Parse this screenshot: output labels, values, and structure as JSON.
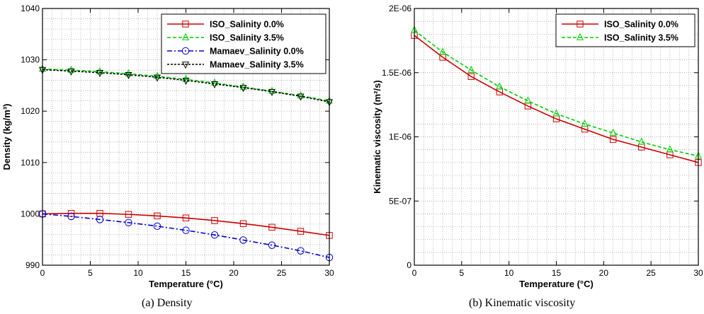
{
  "chart_data": [
    {
      "type": "line",
      "caption": "(a)  Density",
      "xlabel": "Temperature (°C)",
      "ylabel": "Density (kg/m³)",
      "xlim": [
        0,
        30
      ],
      "ylim": [
        990,
        1040
      ],
      "xticks": [
        0,
        5,
        10,
        15,
        20,
        25,
        30
      ],
      "yticks": [
        990,
        1000,
        1010,
        1020,
        1030,
        1040
      ],
      "ytick_labels": [
        "990",
        "1000",
        "1010",
        "1020",
        "1030",
        "1040"
      ],
      "grid": "dotted",
      "legend_position": "top-right",
      "series": [
        {
          "name": "ISO_Salinity 0.0%",
          "color": "#cc0000",
          "dash": "solid",
          "marker": "square",
          "x": [
            0,
            3,
            6,
            9,
            12,
            15,
            18,
            21,
            24,
            27,
            30
          ],
          "y": [
            1000.0,
            1000.1,
            1000.1,
            999.9,
            999.6,
            999.2,
            998.7,
            998.1,
            997.4,
            996.6,
            995.8
          ]
        },
        {
          "name": "ISO_Salinity 3.5%",
          "color": "#00cc00",
          "dash": "dashed",
          "marker": "triangle-up",
          "x": [
            0,
            3,
            6,
            9,
            12,
            15,
            18,
            21,
            24,
            27,
            30
          ],
          "y": [
            1028.2,
            1028.0,
            1027.7,
            1027.3,
            1026.8,
            1026.2,
            1025.5,
            1024.7,
            1023.9,
            1023.0,
            1022.0
          ]
        },
        {
          "name": "Mamaev_Salinity 0.0%",
          "color": "#0000cc",
          "dash": "dashdot",
          "marker": "circle",
          "x": [
            0,
            3,
            6,
            9,
            12,
            15,
            18,
            21,
            24,
            27,
            30
          ],
          "y": [
            1000.0,
            999.5,
            998.9,
            998.3,
            997.6,
            996.8,
            995.9,
            994.9,
            993.9,
            992.8,
            991.5
          ]
        },
        {
          "name": "Mamaev_Salinity 3.5%",
          "color": "#000000",
          "dash": "dotted",
          "marker": "triangle-down",
          "x": [
            0,
            3,
            6,
            9,
            12,
            15,
            18,
            21,
            24,
            27,
            30
          ],
          "y": [
            1028.1,
            1027.8,
            1027.5,
            1027.1,
            1026.6,
            1026.0,
            1025.3,
            1024.6,
            1023.8,
            1022.9,
            1021.8
          ]
        }
      ]
    },
    {
      "type": "line",
      "caption": "(b)  Kinematic  viscosity",
      "xlabel": "Temperature (°C)",
      "ylabel": "Kinematic viscosity (m²/s)",
      "xlim": [
        0,
        30
      ],
      "ylim": [
        0,
        2e-06
      ],
      "xticks": [
        0,
        5,
        10,
        15,
        20,
        25,
        30
      ],
      "yticks": [
        0,
        5e-07,
        1e-06,
        1.5e-06,
        2e-06
      ],
      "ytick_labels": [
        "0",
        "5E-07",
        "1E-06",
        "1.5E-06",
        "2E-06"
      ],
      "grid": "dotted",
      "legend_position": "top-right",
      "series": [
        {
          "name": "ISO_Salinity 0.0%",
          "color": "#cc0000",
          "dash": "solid",
          "marker": "square",
          "x": [
            0,
            3,
            6,
            9,
            12,
            15,
            18,
            21,
            24,
            27,
            30
          ],
          "y": [
            1.79e-06,
            1.62e-06,
            1.47e-06,
            1.35e-06,
            1.24e-06,
            1.14e-06,
            1.06e-06,
            9.8e-07,
            9.2e-07,
            8.6e-07,
            8e-07
          ]
        },
        {
          "name": "ISO_Salinity 3.5%",
          "color": "#00cc00",
          "dash": "dashed",
          "marker": "triangle-up",
          "x": [
            0,
            3,
            6,
            9,
            12,
            15,
            18,
            21,
            24,
            27,
            30
          ],
          "y": [
            1.83e-06,
            1.66e-06,
            1.52e-06,
            1.39e-06,
            1.28e-06,
            1.18e-06,
            1.1e-06,
            1.03e-06,
            9.6e-07,
            9e-07,
            8.5e-07
          ]
        }
      ]
    }
  ]
}
